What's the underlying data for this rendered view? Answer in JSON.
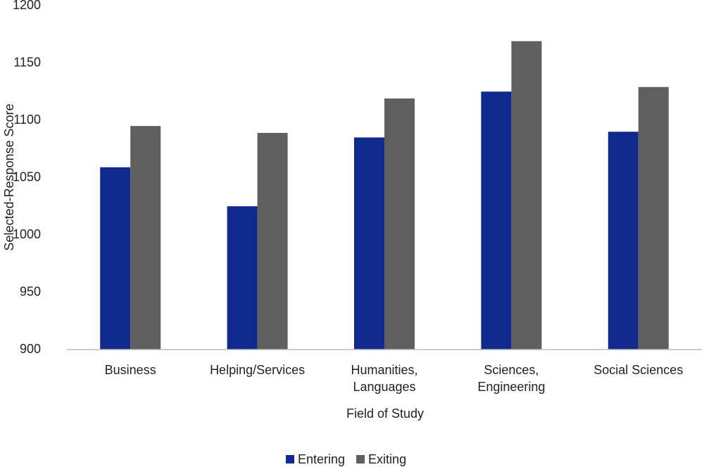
{
  "chart_data": {
    "type": "bar",
    "x_label": "Field of Study",
    "y_label": "Selected-Response Score",
    "categories": [
      "Business",
      "Helping/Services",
      "Humanities, Languages",
      "Sciences, Engineering",
      "Social Sciences"
    ],
    "series": [
      {
        "name": "Entering",
        "color": "#10298c",
        "values": [
          1059,
          1025,
          1085,
          1125,
          1090
        ]
      },
      {
        "name": "Exiting",
        "color": "#5f5f5f",
        "values": [
          1095,
          1089,
          1119,
          1169,
          1129
        ]
      }
    ],
    "ylim": [
      900,
      1200
    ],
    "yticks": [
      900,
      950,
      1000,
      1050,
      1100,
      1150,
      1200
    ],
    "grid": false,
    "legend": "bottom"
  }
}
